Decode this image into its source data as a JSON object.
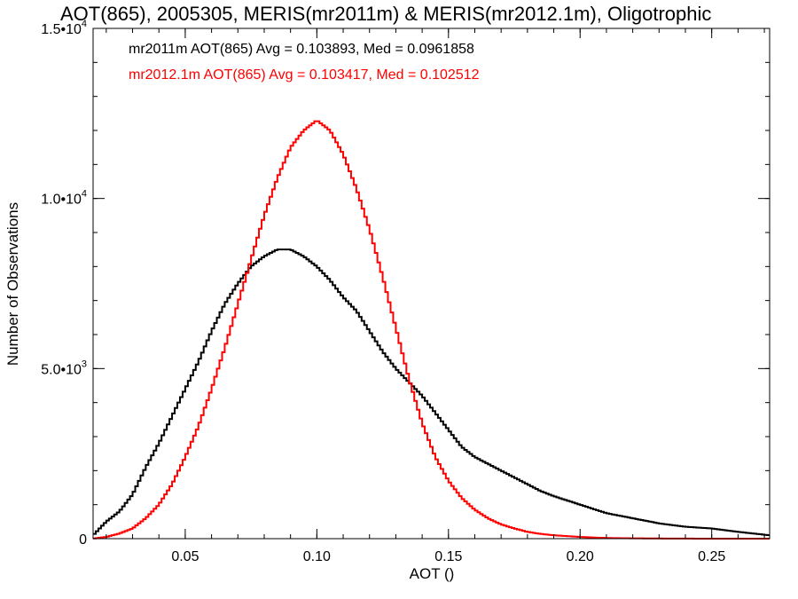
{
  "chart_data": {
    "type": "line",
    "title": "AOT(865), 2005305, MERIS(mr2011m) & MERIS(mr2012.1m), Oligotrophic",
    "xlabel": "AOT ()",
    "ylabel": "Number of Observations",
    "xlim": [
      0.015,
      0.272
    ],
    "ylim": [
      0,
      15000
    ],
    "x_ticks": [
      {
        "value": 0.05,
        "label": "0.05"
      },
      {
        "value": 0.1,
        "label": "0.10"
      },
      {
        "value": 0.15,
        "label": "0.15"
      },
      {
        "value": 0.2,
        "label": "0.20"
      },
      {
        "value": 0.25,
        "label": "0.25"
      }
    ],
    "y_ticks": [
      {
        "value": 0,
        "label": "0",
        "exp": ""
      },
      {
        "value": 5000,
        "label": "5.0•10",
        "exp": "3"
      },
      {
        "value": 10000,
        "label": "1.0•10",
        "exp": "4"
      },
      {
        "value": 15000,
        "label": "1.5•10",
        "exp": "4"
      }
    ],
    "grid": false,
    "legend_position": "top-left",
    "series": [
      {
        "name": "mr2011m",
        "legend": "mr2011m AOT(865) Avg = 0.103893, Med = 0.0961858",
        "color": "#000000",
        "x": [
          0.015,
          0.02,
          0.025,
          0.03,
          0.035,
          0.04,
          0.045,
          0.05,
          0.055,
          0.06,
          0.065,
          0.07,
          0.075,
          0.08,
          0.085,
          0.09,
          0.095,
          0.1,
          0.105,
          0.11,
          0.115,
          0.12,
          0.125,
          0.13,
          0.135,
          0.14,
          0.145,
          0.15,
          0.155,
          0.16,
          0.165,
          0.17,
          0.175,
          0.18,
          0.185,
          0.19,
          0.2,
          0.21,
          0.22,
          0.23,
          0.24,
          0.25,
          0.26,
          0.272
        ],
        "y": [
          100,
          500,
          800,
          1300,
          2100,
          2800,
          3600,
          4400,
          5200,
          6100,
          6900,
          7500,
          8000,
          8300,
          8500,
          8500,
          8300,
          8000,
          7600,
          7100,
          6700,
          6100,
          5500,
          5000,
          4600,
          4200,
          3700,
          3200,
          2700,
          2400,
          2200,
          2000,
          1800,
          1600,
          1400,
          1250,
          1000,
          750,
          600,
          450,
          350,
          300,
          200,
          100
        ]
      },
      {
        "name": "mr2012.1m",
        "legend": "mr2012.1m AOT(865) Avg = 0.103417, Med = 0.102512",
        "color": "#ff0000",
        "x": [
          0.015,
          0.02,
          0.025,
          0.03,
          0.035,
          0.04,
          0.045,
          0.05,
          0.055,
          0.06,
          0.065,
          0.07,
          0.075,
          0.08,
          0.085,
          0.09,
          0.095,
          0.1,
          0.105,
          0.11,
          0.115,
          0.12,
          0.125,
          0.13,
          0.135,
          0.14,
          0.145,
          0.15,
          0.155,
          0.16,
          0.165,
          0.17,
          0.175,
          0.18,
          0.185,
          0.19,
          0.2,
          0.21,
          0.22,
          0.23,
          0.25,
          0.272
        ],
        "y": [
          0,
          50,
          150,
          300,
          600,
          1000,
          1600,
          2400,
          3300,
          4400,
          5600,
          6900,
          8200,
          9500,
          10600,
          11500,
          12000,
          12300,
          12000,
          11300,
          10300,
          9100,
          7700,
          6200,
          4700,
          3400,
          2400,
          1700,
          1200,
          850,
          600,
          420,
          300,
          200,
          140,
          100,
          50,
          20,
          10,
          5,
          0,
          0
        ]
      }
    ]
  }
}
